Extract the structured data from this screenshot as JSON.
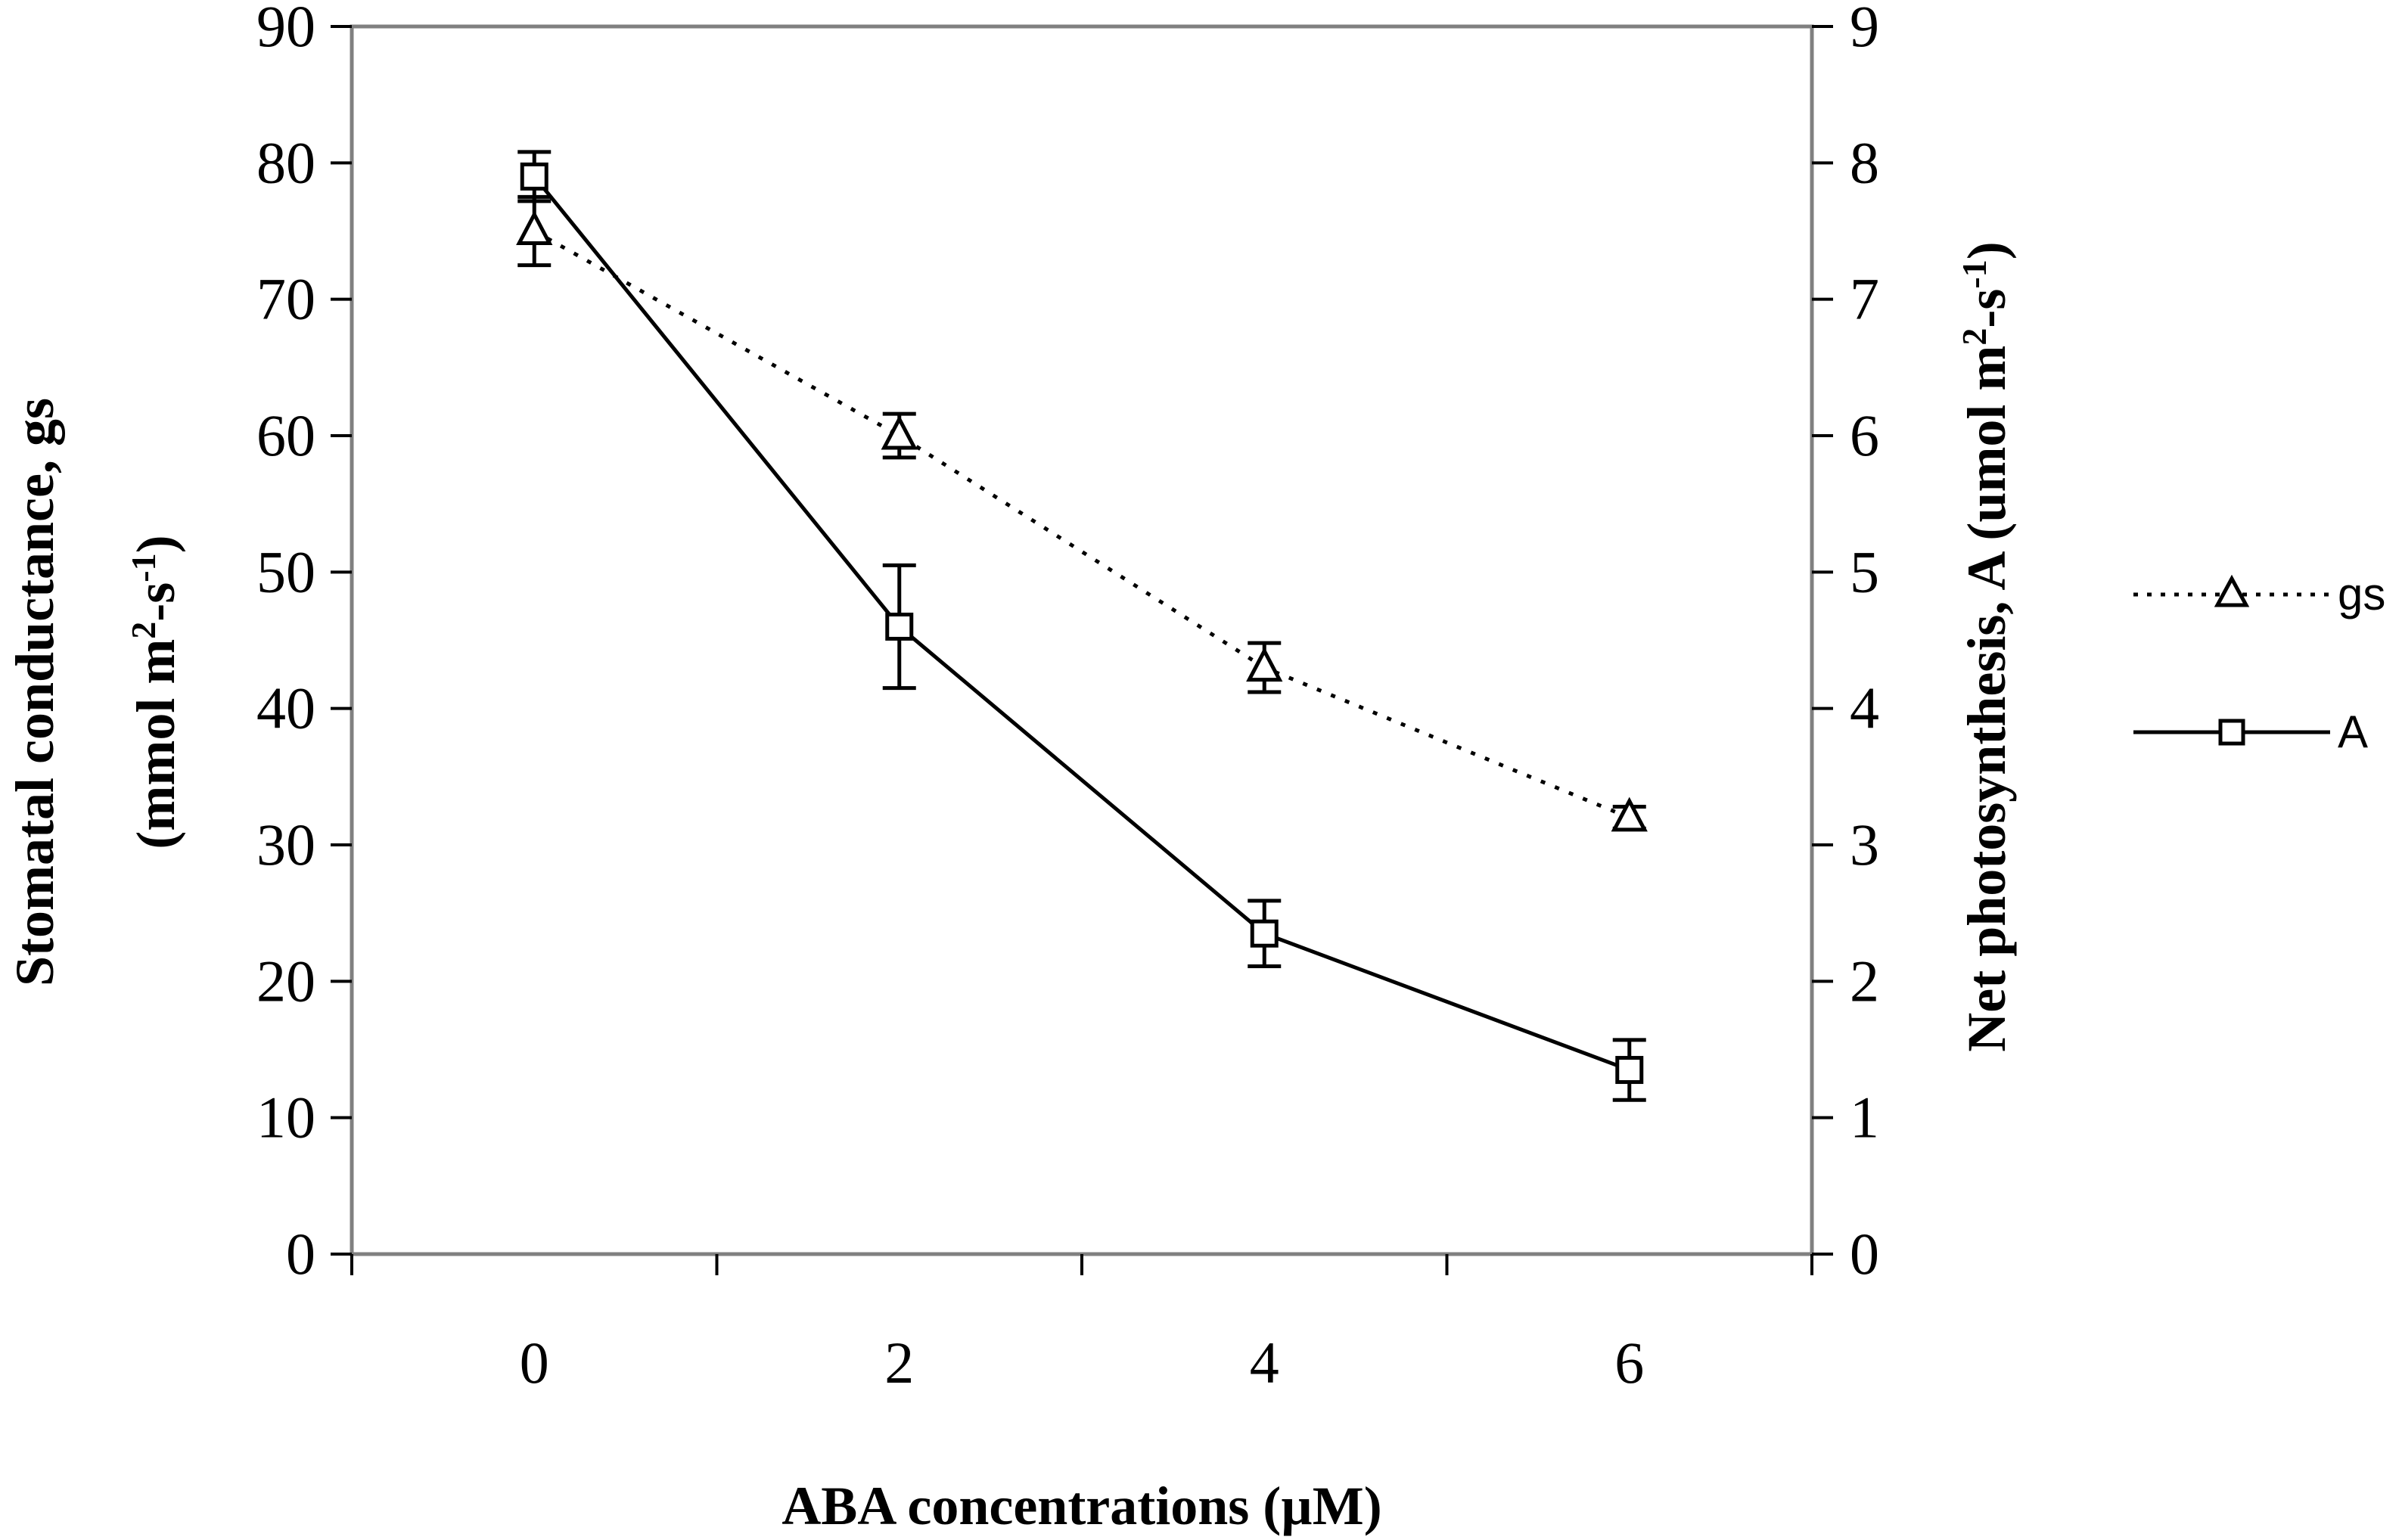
{
  "chart_data": {
    "type": "line",
    "title": "",
    "xlabel": "ABA concentrations (µM)",
    "ylabel_left": {
      "line1": "Stomatal conductance, gs",
      "line2_prefix": "(mmol m",
      "line2_sup1": "2",
      "line2_mid": "-s",
      "line2_sup2": "-1",
      "line2_suffix": ")"
    },
    "ylabel_right": {
      "prefix": "Net photosynthesis, A (umol m",
      "sup1": "2",
      "mid": "-s",
      "sup2": "-1",
      "suffix": ")"
    },
    "x": [
      0,
      2,
      4,
      6
    ],
    "x_tick_labels": [
      "0",
      "2",
      "4",
      "6"
    ],
    "xlim": [
      -1,
      7
    ],
    "ylim_left": [
      0,
      90
    ],
    "ylim_right": [
      0,
      9
    ],
    "y_left_ticks": [
      "0",
      "10",
      "20",
      "30",
      "40",
      "50",
      "60",
      "70",
      "80",
      "90"
    ],
    "y_right_ticks": [
      "0",
      "1",
      "2",
      "3",
      "4",
      "5",
      "6",
      "7",
      "8",
      "9"
    ],
    "grid": false,
    "legend_position": "right",
    "series": [
      {
        "name": "gs",
        "axis": "left",
        "marker": "triangle",
        "line_style": "dotted",
        "values": [
          75,
          60,
          43,
          32
        ],
        "errors": [
          2.5,
          1.6,
          1.8,
          0.8
        ]
      },
      {
        "name": "A",
        "axis": "right",
        "marker": "square",
        "line_style": "solid",
        "values": [
          7.9,
          4.6,
          2.35,
          1.35
        ],
        "errors": [
          0.18,
          0.45,
          0.24,
          0.22
        ]
      }
    ]
  }
}
